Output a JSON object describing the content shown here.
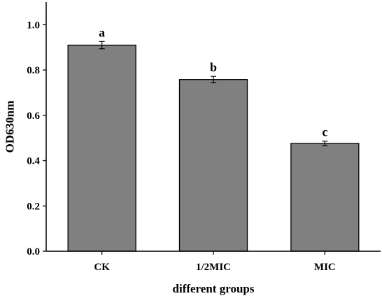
{
  "chart_data": {
    "type": "bar",
    "categories": [
      "CK",
      "1/2MIC",
      "MIC"
    ],
    "values": [
      0.91,
      0.758,
      0.476
    ],
    "errors": [
      0.016,
      0.014,
      0.01
    ],
    "significance_labels": [
      "a",
      "b",
      "c"
    ],
    "xlabel": "different groups",
    "ylabel": "OD630nm",
    "ylim": [
      0,
      1.1
    ],
    "yticks": [
      0.0,
      0.2,
      0.4,
      0.6,
      0.8,
      1.0
    ],
    "ytick_labels": [
      "0.0",
      "0.2",
      "0.4",
      "0.6",
      "0.8",
      "1.0"
    ],
    "bar_color": "#808080",
    "grid": false
  }
}
